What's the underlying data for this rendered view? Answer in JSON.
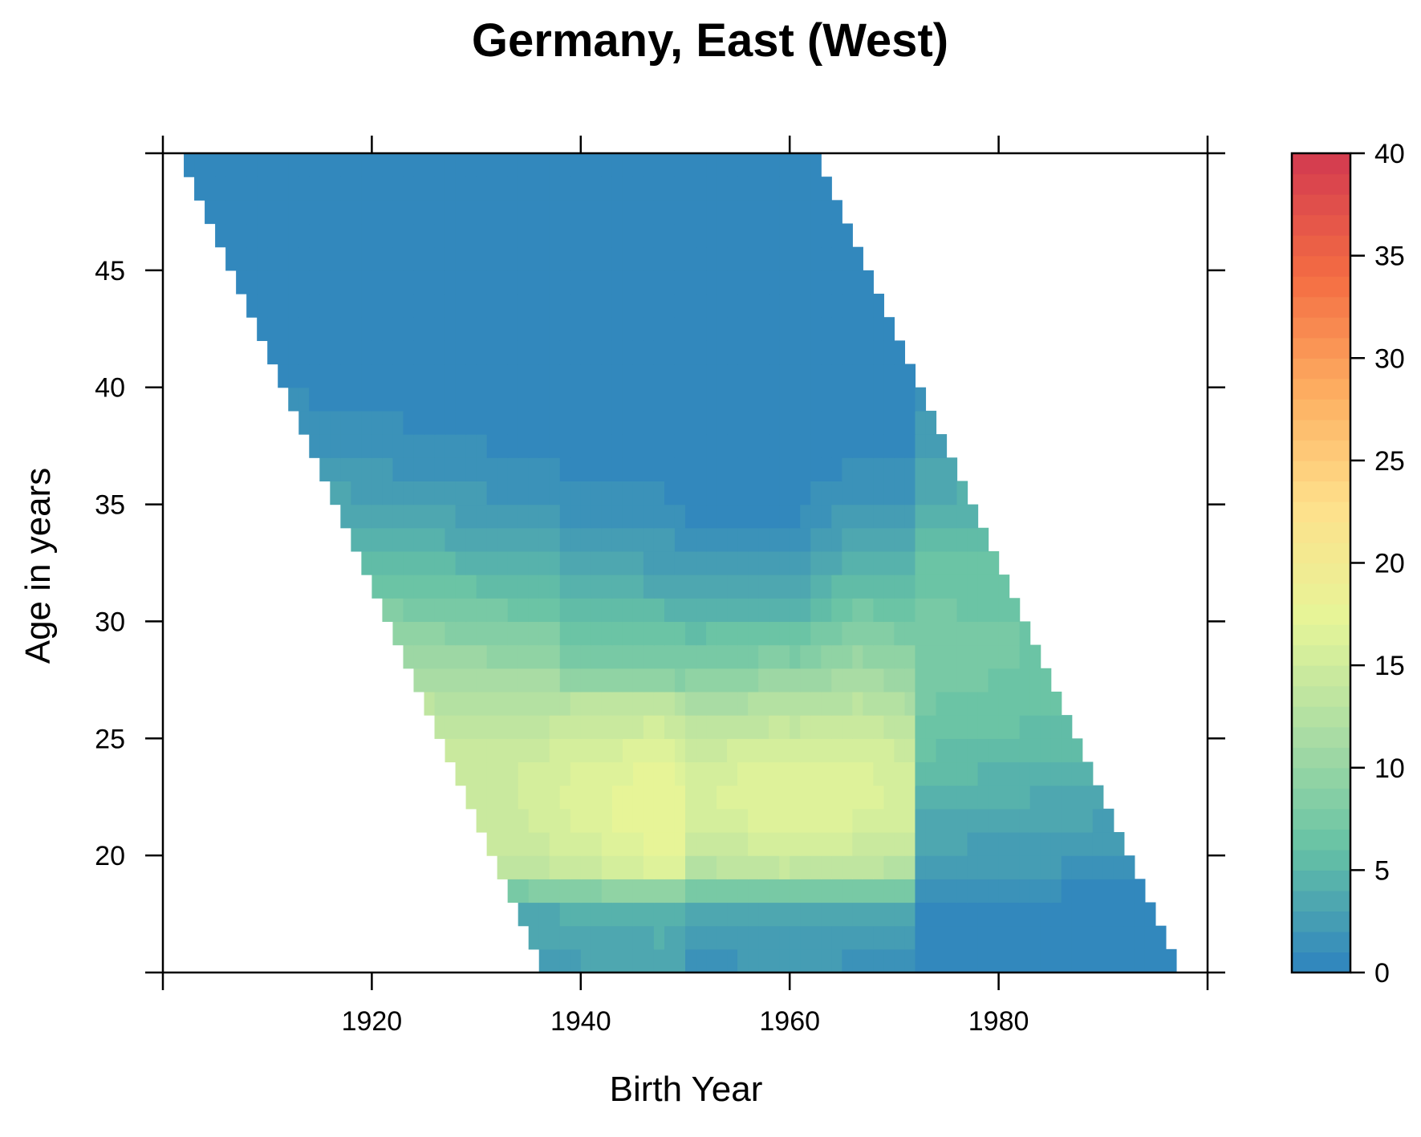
{
  "chart_data": {
    "type": "heatmap",
    "title": "Germany, East (West)",
    "xlabel": "Birth Year",
    "ylabel": "Age in years",
    "xlim": [
      1900,
      2000
    ],
    "ylim": [
      15,
      50
    ],
    "x_ticks": [
      1920,
      1940,
      1960,
      1980
    ],
    "y_ticks": [
      20,
      25,
      30,
      35,
      40,
      45
    ],
    "colorbar": {
      "range": [
        0,
        40
      ],
      "ticks": [
        0,
        5,
        10,
        15,
        20,
        25,
        30,
        35,
        40
      ],
      "colors": [
        "#3288bd",
        "#66c2a5",
        "#abdda4",
        "#e6f598",
        "#fee08b",
        "#fdae61",
        "#f46d43",
        "#d53e4f"
      ]
    },
    "birth_year_range": [
      1901,
      1996
    ],
    "age_range": [
      15,
      49
    ],
    "approx_surface_peaks": [
      {
        "birth_year": 1947,
        "age": 21,
        "value": 18
      },
      {
        "birth_year": 1958,
        "age": 21,
        "value": 17.5
      }
    ]
  }
}
